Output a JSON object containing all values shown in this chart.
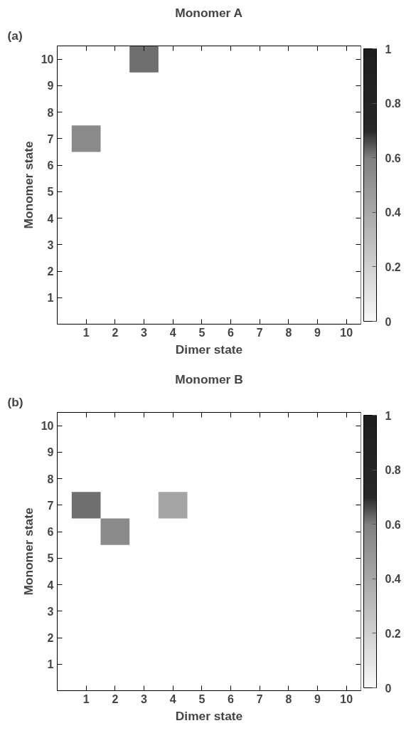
{
  "chart_data": [
    {
      "type": "heatmap",
      "title": "Monomer A",
      "xlabel": "Dimer state",
      "ylabel": "Monomer state",
      "annotations": [
        "(a)"
      ],
      "categories": [
        "1",
        "2",
        "3",
        "4",
        "5",
        "6",
        "7",
        "8",
        "9",
        "10"
      ],
      "y_categories": [
        "10",
        "9",
        "8",
        "7",
        "6",
        "5",
        "4",
        "3",
        "2",
        "1"
      ],
      "cells": [
        [
          null,
          null,
          0.62,
          null,
          null,
          null,
          null,
          null,
          null,
          null
        ],
        [
          null,
          null,
          null,
          null,
          null,
          null,
          null,
          null,
          null,
          null
        ],
        [
          null,
          null,
          null,
          null,
          null,
          null,
          null,
          null,
          null,
          null
        ],
        [
          0.55,
          null,
          null,
          null,
          null,
          null,
          null,
          null,
          null,
          null
        ],
        [
          null,
          null,
          null,
          null,
          null,
          null,
          null,
          null,
          null,
          null
        ],
        [
          null,
          null,
          null,
          null,
          null,
          null,
          null,
          null,
          null,
          null
        ],
        [
          null,
          null,
          null,
          null,
          null,
          null,
          null,
          null,
          null,
          null
        ],
        [
          null,
          null,
          null,
          null,
          null,
          null,
          null,
          null,
          null,
          null
        ],
        [
          null,
          null,
          null,
          null,
          null,
          null,
          null,
          null,
          null,
          null
        ],
        [
          null,
          null,
          null,
          null,
          null,
          null,
          null,
          null,
          null,
          null
        ]
      ],
      "clim": [
        0,
        1
      ],
      "cticks": [
        0,
        0.2,
        0.4,
        0.6,
        0.8,
        1
      ],
      "grid": false
    },
    {
      "type": "heatmap",
      "title": "Monomer B",
      "xlabel": "Dimer state",
      "ylabel": "Monomer state",
      "annotations": [
        "(b)"
      ],
      "categories": [
        "1",
        "2",
        "3",
        "4",
        "5",
        "6",
        "7",
        "8",
        "9",
        "10"
      ],
      "y_categories": [
        "10",
        "9",
        "8",
        "7",
        "6",
        "5",
        "4",
        "3",
        "2",
        "1"
      ],
      "cells": [
        [
          null,
          null,
          null,
          null,
          null,
          null,
          null,
          null,
          null,
          null
        ],
        [
          null,
          null,
          null,
          null,
          null,
          null,
          null,
          null,
          null,
          null
        ],
        [
          null,
          null,
          null,
          null,
          null,
          null,
          null,
          null,
          null,
          null
        ],
        [
          0.62,
          null,
          null,
          0.42,
          null,
          null,
          null,
          null,
          null,
          null
        ],
        [
          null,
          0.55,
          null,
          null,
          null,
          null,
          null,
          null,
          null,
          null
        ],
        [
          null,
          null,
          null,
          null,
          null,
          null,
          null,
          null,
          null,
          null
        ],
        [
          null,
          null,
          null,
          null,
          null,
          null,
          null,
          null,
          null,
          null
        ],
        [
          null,
          null,
          null,
          null,
          null,
          null,
          null,
          null,
          null,
          null
        ],
        [
          null,
          null,
          null,
          null,
          null,
          null,
          null,
          null,
          null,
          null
        ],
        [
          null,
          null,
          null,
          null,
          null,
          null,
          null,
          null,
          null,
          null
        ]
      ],
      "clim": [
        0,
        1
      ],
      "cticks": [
        0,
        0.2,
        0.4,
        0.6,
        0.8,
        1
      ],
      "grid": false
    }
  ]
}
